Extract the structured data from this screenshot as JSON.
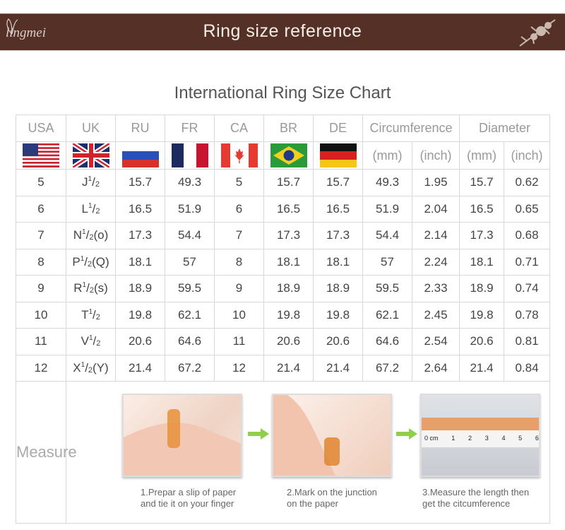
{
  "banner": {
    "title": "Ring size reference",
    "logo": "lingmei",
    "color": "#553026"
  },
  "chart_title": "International Ring Size Chart",
  "headers": [
    "USA",
    "UK",
    "RU",
    "FR",
    "CA",
    "BR",
    "DE",
    "Circumference",
    "Diameter"
  ],
  "units": {
    "circ_mm": "(mm)",
    "circ_inch": "(inch)",
    "dia_mm": "(mm)",
    "dia_inch": "(inch)"
  },
  "flags": [
    "us-flag-icon",
    "uk-flag-icon",
    "russia-flag-icon",
    "france-flag-icon",
    "canada-flag-icon",
    "brazil-flag-icon",
    "germany-flag-icon"
  ],
  "chart_data": {
    "type": "table",
    "columns": [
      "USA",
      "UK",
      "RU",
      "FR",
      "CA",
      "BR",
      "DE",
      "Circumference (mm)",
      "Circumference (inch)",
      "Diameter (mm)",
      "Diameter (inch)"
    ],
    "rows": [
      {
        "usa": "5",
        "uk_letter": "J",
        "uk_suffix": "",
        "ru": "15.7",
        "fr": "49.3",
        "ca": "5",
        "br": "15.7",
        "de": "15.7",
        "circ_mm": "49.3",
        "circ_in": "1.95",
        "dia_mm": "15.7",
        "dia_in": "0.62"
      },
      {
        "usa": "6",
        "uk_letter": "L",
        "uk_suffix": "",
        "ru": "16.5",
        "fr": "51.9",
        "ca": "6",
        "br": "16.5",
        "de": "16.5",
        "circ_mm": "51.9",
        "circ_in": "2.04",
        "dia_mm": "16.5",
        "dia_in": "0.65"
      },
      {
        "usa": "7",
        "uk_letter": "N",
        "uk_suffix": "(o)",
        "ru": "17.3",
        "fr": "54.4",
        "ca": "7",
        "br": "17.3",
        "de": "17.3",
        "circ_mm": "54.4",
        "circ_in": "2.14",
        "dia_mm": "17.3",
        "dia_in": "0.68"
      },
      {
        "usa": "8",
        "uk_letter": "P",
        "uk_suffix": "(Q)",
        "ru": "18.1",
        "fr": "57",
        "ca": "8",
        "br": "18.1",
        "de": "18.1",
        "circ_mm": "57",
        "circ_in": "2.24",
        "dia_mm": "18.1",
        "dia_in": "0.71"
      },
      {
        "usa": "9",
        "uk_letter": "R",
        "uk_suffix": "(s)",
        "ru": "18.9",
        "fr": "59.5",
        "ca": "9",
        "br": "18.9",
        "de": "18.9",
        "circ_mm": "59.5",
        "circ_in": "2.33",
        "dia_mm": "18.9",
        "dia_in": "0.74"
      },
      {
        "usa": "10",
        "uk_letter": "T",
        "uk_suffix": "",
        "ru": "19.8",
        "fr": "62.1",
        "ca": "10",
        "br": "19.8",
        "de": "19.8",
        "circ_mm": "62.1",
        "circ_in": "2.45",
        "dia_mm": "19.8",
        "dia_in": "0.78"
      },
      {
        "usa": "11",
        "uk_letter": "V",
        "uk_suffix": "",
        "ru": "20.6",
        "fr": "64.6",
        "ca": "11",
        "br": "20.6",
        "de": "20.6",
        "circ_mm": "64.6",
        "circ_in": "2.54",
        "dia_mm": "20.6",
        "dia_in": "0.81"
      },
      {
        "usa": "12",
        "uk_letter": "X",
        "uk_suffix": "(Y)",
        "ru": "21.4",
        "fr": "67.2",
        "ca": "12",
        "br": "21.4",
        "de": "21.4",
        "circ_mm": "67.2",
        "circ_in": "2.64",
        "dia_mm": "21.4",
        "dia_in": "0.84"
      }
    ],
    "half": {
      "num": "1",
      "den": "2"
    }
  },
  "measure": {
    "label": "Measure",
    "steps": [
      {
        "line1": "1.Prepar a slip of paper",
        "line2": "and tie it on your finger"
      },
      {
        "line1": "2.Mark on the junction",
        "line2": "on the paper"
      },
      {
        "line1": "3.Measure the length then",
        "line2": "get the citcumference"
      }
    ],
    "ruler_labels": [
      "0 cm",
      "1",
      "2",
      "3",
      "4",
      "5",
      "6"
    ]
  }
}
